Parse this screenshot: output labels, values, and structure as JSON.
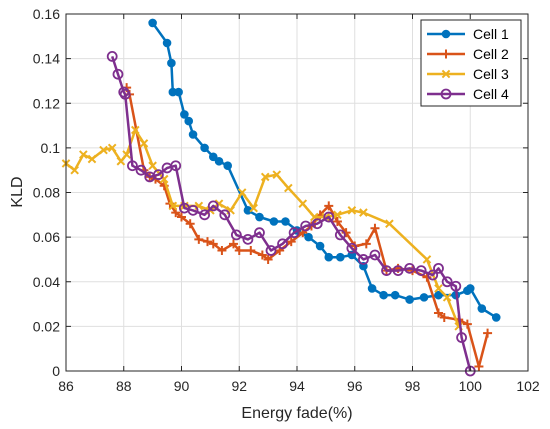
{
  "chart_data": {
    "type": "line",
    "xlabel": "Energy fade(%)",
    "ylabel": "KLD",
    "xlim": [
      86,
      102
    ],
    "ylim": [
      0,
      0.16
    ],
    "xticks": [
      "86",
      "88",
      "90",
      "92",
      "94",
      "96",
      "98",
      "100",
      "102"
    ],
    "yticks": [
      "0",
      "0.02",
      "0.04",
      "0.06",
      "0.08",
      "0.1",
      "0.12",
      "0.14",
      "0.16"
    ],
    "grid": true,
    "legend_position": "top-right",
    "series": [
      {
        "name": "Cell 1",
        "color": "#0072BD",
        "marker": "circle-filled",
        "x": [
          89.0,
          89.5,
          89.65,
          89.7,
          89.9,
          90.1,
          90.25,
          90.4,
          90.8,
          91.1,
          91.3,
          91.6,
          92.3,
          92.7,
          93.2,
          93.6,
          94.0,
          94.4,
          94.8,
          95.1,
          95.5,
          95.9,
          96.3,
          96.6,
          97.0,
          97.4,
          97.9,
          98.4,
          98.9,
          99.5,
          99.9,
          100.0,
          100.4,
          100.9
        ],
        "y": [
          0.156,
          0.147,
          0.138,
          0.125,
          0.125,
          0.115,
          0.112,
          0.106,
          0.1,
          0.096,
          0.094,
          0.092,
          0.072,
          0.069,
          0.067,
          0.067,
          0.063,
          0.06,
          0.056,
          0.051,
          0.051,
          0.052,
          0.047,
          0.037,
          0.034,
          0.034,
          0.032,
          0.033,
          0.034,
          0.034,
          0.036,
          0.037,
          0.028,
          0.024
        ]
      },
      {
        "name": "Cell 2",
        "color": "#D95319",
        "marker": "plus",
        "x": [
          88.1,
          88.2,
          88.7,
          88.9,
          89.1,
          89.4,
          89.6,
          89.8,
          90.0,
          90.3,
          90.6,
          90.9,
          91.1,
          91.4,
          91.8,
          92.0,
          92.4,
          92.8,
          93.0,
          93.4,
          93.8,
          94.2,
          94.5,
          94.8,
          95.1,
          95.4,
          95.7,
          96.0,
          96.4,
          96.7,
          97.1,
          97.5,
          98.0,
          98.5,
          98.9,
          99.1,
          99.6,
          99.9,
          100.3,
          100.6
        ],
        "y": [
          0.127,
          0.124,
          0.09,
          0.087,
          0.086,
          0.083,
          0.075,
          0.071,
          0.069,
          0.066,
          0.059,
          0.058,
          0.057,
          0.054,
          0.057,
          0.054,
          0.054,
          0.052,
          0.05,
          0.054,
          0.058,
          0.062,
          0.065,
          0.07,
          0.074,
          0.067,
          0.062,
          0.056,
          0.057,
          0.064,
          0.045,
          0.046,
          0.045,
          0.042,
          0.026,
          0.024,
          0.023,
          0.021,
          0.002,
          0.017
        ]
      },
      {
        "name": "Cell 3",
        "color": "#EDB120",
        "marker": "cross",
        "x": [
          86.0,
          86.3,
          86.6,
          86.9,
          87.3,
          87.6,
          87.9,
          88.1,
          88.4,
          88.7,
          89.0,
          89.4,
          89.7,
          90.1,
          90.6,
          91.0,
          91.3,
          91.7,
          92.1,
          92.5,
          92.9,
          93.3,
          93.7,
          94.2,
          94.6,
          95.0,
          95.4,
          95.9,
          96.3,
          97.2,
          98.5,
          98.9,
          99.2,
          99.6
        ],
        "y": [
          0.093,
          0.09,
          0.097,
          0.095,
          0.099,
          0.1,
          0.094,
          0.097,
          0.108,
          0.102,
          0.092,
          0.086,
          0.074,
          0.074,
          0.074,
          0.072,
          0.075,
          0.072,
          0.08,
          0.073,
          0.087,
          0.088,
          0.082,
          0.075,
          0.069,
          0.069,
          0.07,
          0.072,
          0.071,
          0.066,
          0.05,
          0.037,
          0.033,
          0.02
        ]
      },
      {
        "name": "Cell 4",
        "color": "#7E2F8E",
        "marker": "circle-open",
        "x": [
          87.6,
          87.8,
          88.0,
          88.05,
          88.3,
          88.6,
          88.9,
          89.2,
          89.5,
          89.8,
          90.1,
          90.4,
          90.8,
          91.1,
          91.5,
          91.9,
          92.3,
          92.7,
          93.1,
          93.5,
          93.9,
          94.3,
          94.7,
          95.1,
          95.5,
          95.9,
          96.3,
          96.7,
          97.1,
          97.5,
          97.9,
          98.3,
          98.7,
          98.9,
          99.2,
          99.5,
          99.7,
          100.0
        ],
        "y": [
          0.141,
          0.133,
          0.125,
          0.124,
          0.092,
          0.09,
          0.087,
          0.088,
          0.091,
          0.092,
          0.073,
          0.072,
          0.07,
          0.074,
          0.07,
          0.061,
          0.059,
          0.062,
          0.054,
          0.057,
          0.062,
          0.065,
          0.066,
          0.069,
          0.061,
          0.055,
          0.05,
          0.052,
          0.045,
          0.045,
          0.046,
          0.045,
          0.043,
          0.046,
          0.04,
          0.038,
          0.015,
          0.0
        ]
      }
    ]
  }
}
